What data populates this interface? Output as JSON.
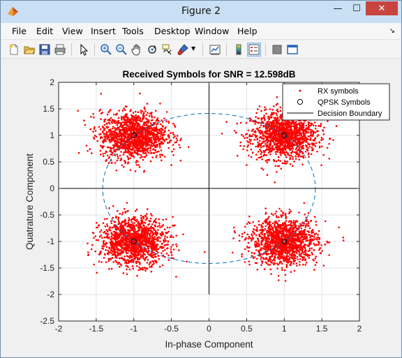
{
  "window": {
    "title": "Figure 2",
    "minimize_glyph": "—",
    "maximize_glyph": "☐",
    "close_glyph": "✕"
  },
  "menu": {
    "items": [
      "File",
      "Edit",
      "View",
      "Insert",
      "Tools",
      "Desktop",
      "Window",
      "Help"
    ],
    "dock_glyph": "↘"
  },
  "toolbar": {
    "icons": [
      "new-figure-icon",
      "open-file-icon",
      "save-icon",
      "print-icon",
      "pointer-icon",
      "zoom-in-icon",
      "zoom-out-icon",
      "pan-icon",
      "rotate-3d-icon",
      "data-cursor-icon",
      "brush-icon",
      "link-plot-icon",
      "colorbar-icon",
      "legend-icon",
      "hide-plot-tools-icon",
      "show-plot-tools-icon"
    ],
    "active_icon": "legend-icon"
  },
  "chart_data": {
    "type": "scatter",
    "title": "Received Symbols for SNR = 12.598dB",
    "xlabel": "In-phase Component",
    "ylabel": "Quatrature Component",
    "xlim": [
      -2,
      2
    ],
    "ylim": [
      -2.5,
      2
    ],
    "xticks": [
      -2,
      -1.5,
      -1,
      -0.5,
      0,
      0.5,
      1,
      1.5,
      2
    ],
    "yticks": [
      -2.5,
      -2,
      -1.5,
      -1,
      -0.5,
      0,
      0.5,
      1,
      1.5,
      2
    ],
    "xtick_labels": [
      "-2",
      "-1.5",
      "-1",
      "-0.5",
      "0",
      "0.5",
      "1",
      "1.5",
      "2"
    ],
    "ytick_labels": [
      "-2.5",
      "-2",
      "-1.5",
      "-1",
      "-0.5",
      "0",
      "0.5",
      "1",
      "1.5",
      "2"
    ],
    "grid": true,
    "legend_position": "top-right",
    "series": [
      {
        "name": "RX symbols",
        "marker": "dot",
        "color": "#ff0000",
        "clusters": [
          {
            "center": [
              1,
              1
            ],
            "spread": 0.22
          },
          {
            "center": [
              -1,
              1
            ],
            "spread": 0.22
          },
          {
            "center": [
              -1,
              -1
            ],
            "spread": 0.22
          },
          {
            "center": [
              1,
              -1
            ],
            "spread": 0.22
          }
        ]
      },
      {
        "name": "QPSK Symbols",
        "marker": "circle",
        "color": "#000000",
        "x": [
          1,
          -1,
          -1,
          1
        ],
        "y": [
          1,
          1,
          -1,
          -1
        ]
      },
      {
        "name": "Decision Boundary",
        "marker": "line",
        "color": "#000000",
        "lines": [
          {
            "x": [
              0,
              0
            ],
            "y": [
              -2,
              2
            ]
          },
          {
            "x": [
              -2,
              2
            ],
            "y": [
              0,
              0
            ]
          }
        ]
      }
    ],
    "reference_circle": {
      "center": [
        0,
        0
      ],
      "radius": 1.414,
      "style": "dashed",
      "color": "#0072bd"
    }
  }
}
